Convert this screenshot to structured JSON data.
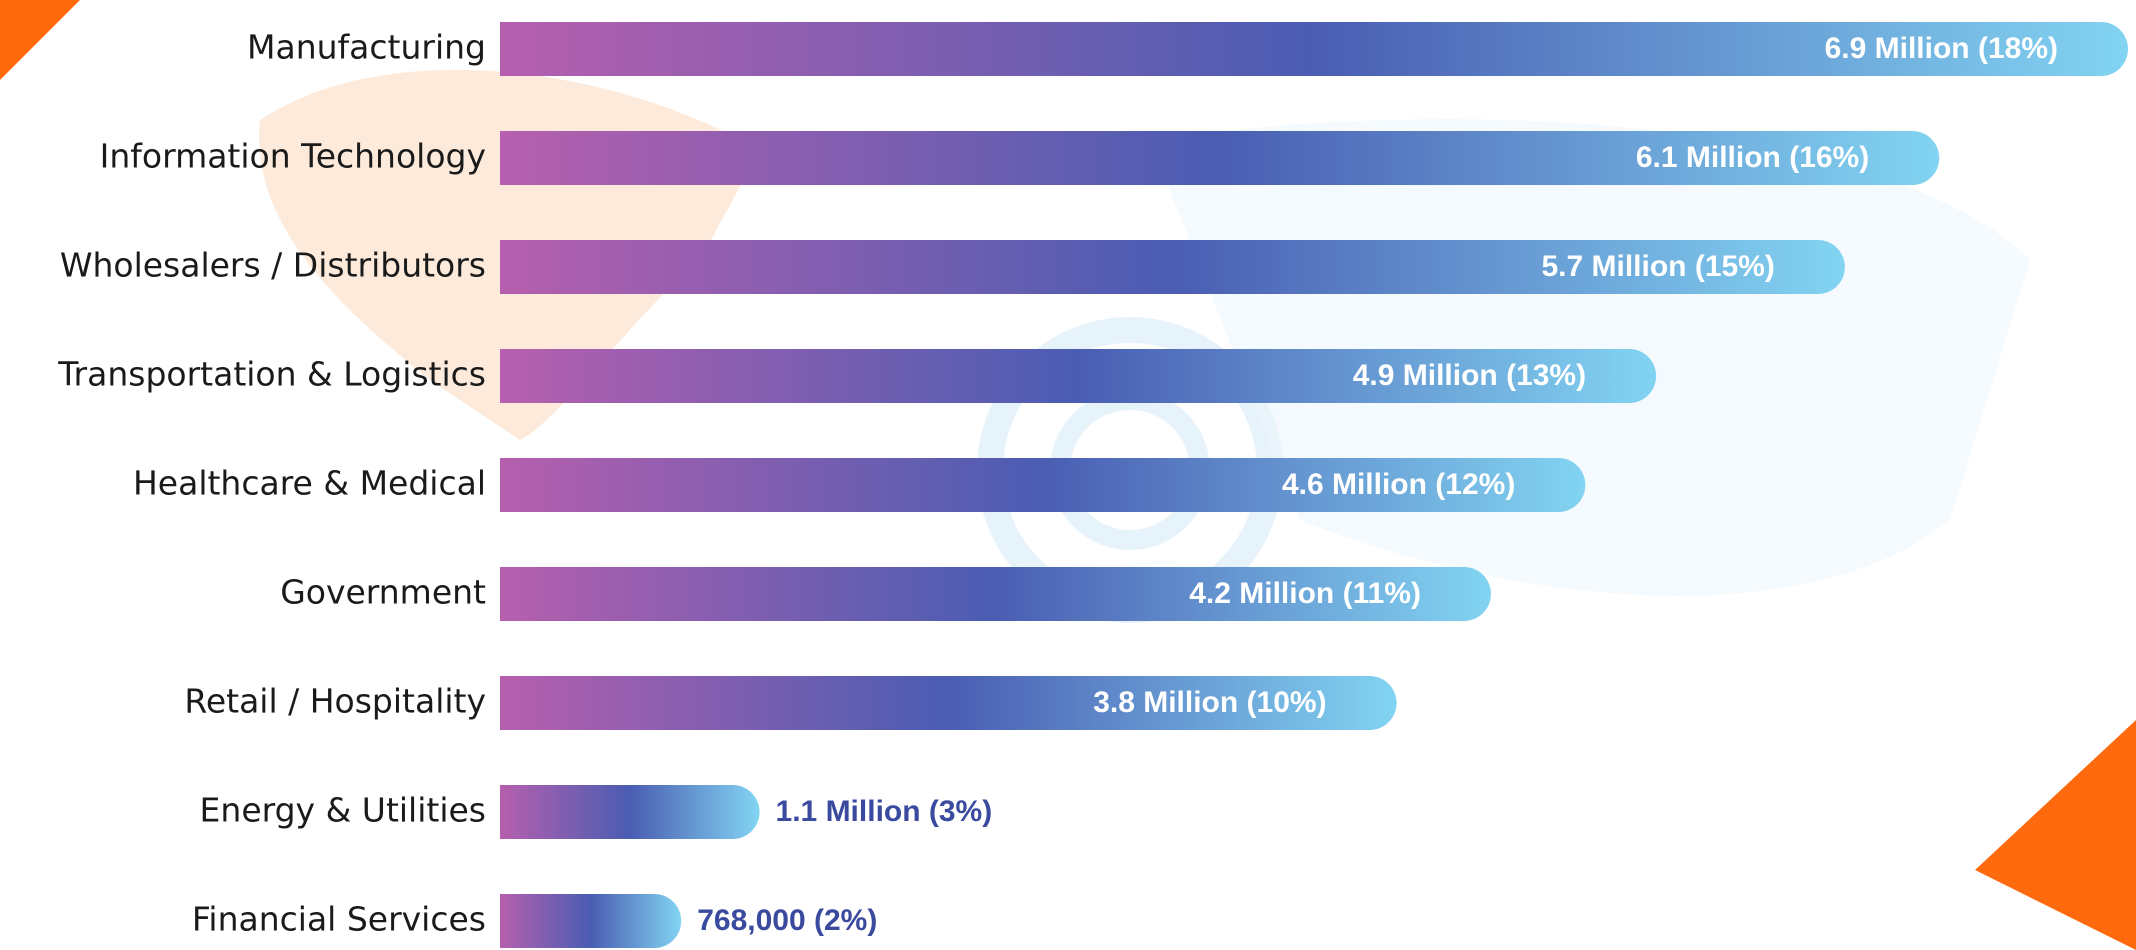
{
  "chart_data": {
    "type": "bar",
    "orientation": "horizontal",
    "categories": [
      "Manufacturing",
      "Information Technology",
      "Wholesalers / Distributors",
      "Transportation & Logistics",
      "Healthcare & Medical",
      "Government",
      "Retail / Hospitality",
      "Energy & Utilities",
      "Financial Services"
    ],
    "values": [
      6900000,
      6100000,
      5700000,
      4900000,
      4600000,
      4200000,
      3800000,
      1100000,
      768000
    ],
    "value_labels": [
      "6.9 Million (18%)",
      "6.1 Million (16%)",
      "5.7 Million (15%)",
      "4.9 Million (13%)",
      "4.6 Million (12%)",
      "4.2 Million (11%)",
      "3.8 Million (10%)",
      "1.1 Million (3%)",
      "768,000 (2%)"
    ],
    "colors": [
      "#b65fae",
      "#4a5db2",
      "#82d4f2"
    ]
  }
}
